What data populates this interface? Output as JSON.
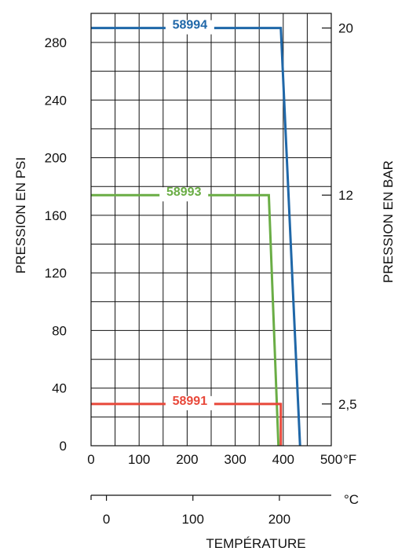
{
  "chart_data": {
    "type": "line",
    "title": "",
    "xlabel": "TEMPÉRATURE",
    "ylabel": "PRESSION EN PSI",
    "y2label": "PRESSION EN BAR",
    "x_unit": "°F",
    "x2_unit": "°C",
    "xlim": [
      0,
      500
    ],
    "ylim": [
      0,
      300
    ],
    "grid": true,
    "x_ticks": [
      "0",
      "100",
      "200",
      "300",
      "400",
      "500"
    ],
    "y_ticks": [
      "0",
      "40",
      "80",
      "120",
      "160",
      "200",
      "240",
      "280"
    ],
    "y2_ticks": [
      {
        "label": "20",
        "psi": 290
      },
      {
        "label": "12",
        "psi": 174
      },
      {
        "label": "2,5",
        "psi": 29
      }
    ],
    "x2_ticks": [
      {
        "label": "0",
        "f": 32
      },
      {
        "label": "100",
        "f": 212
      },
      {
        "label": "200",
        "f": 392
      }
    ],
    "series": [
      {
        "name": "58994",
        "color": "#1f67a8",
        "points": [
          [
            0,
            290
          ],
          [
            395,
            290
          ],
          [
            435,
            0
          ]
        ]
      },
      {
        "name": "58993",
        "color": "#6aad45",
        "points": [
          [
            0,
            174
          ],
          [
            370,
            174
          ],
          [
            390,
            0
          ]
        ]
      },
      {
        "name": "58991",
        "color": "#e8483a",
        "points": [
          [
            0,
            29
          ],
          [
            395,
            29
          ],
          [
            395,
            0
          ]
        ]
      }
    ]
  }
}
